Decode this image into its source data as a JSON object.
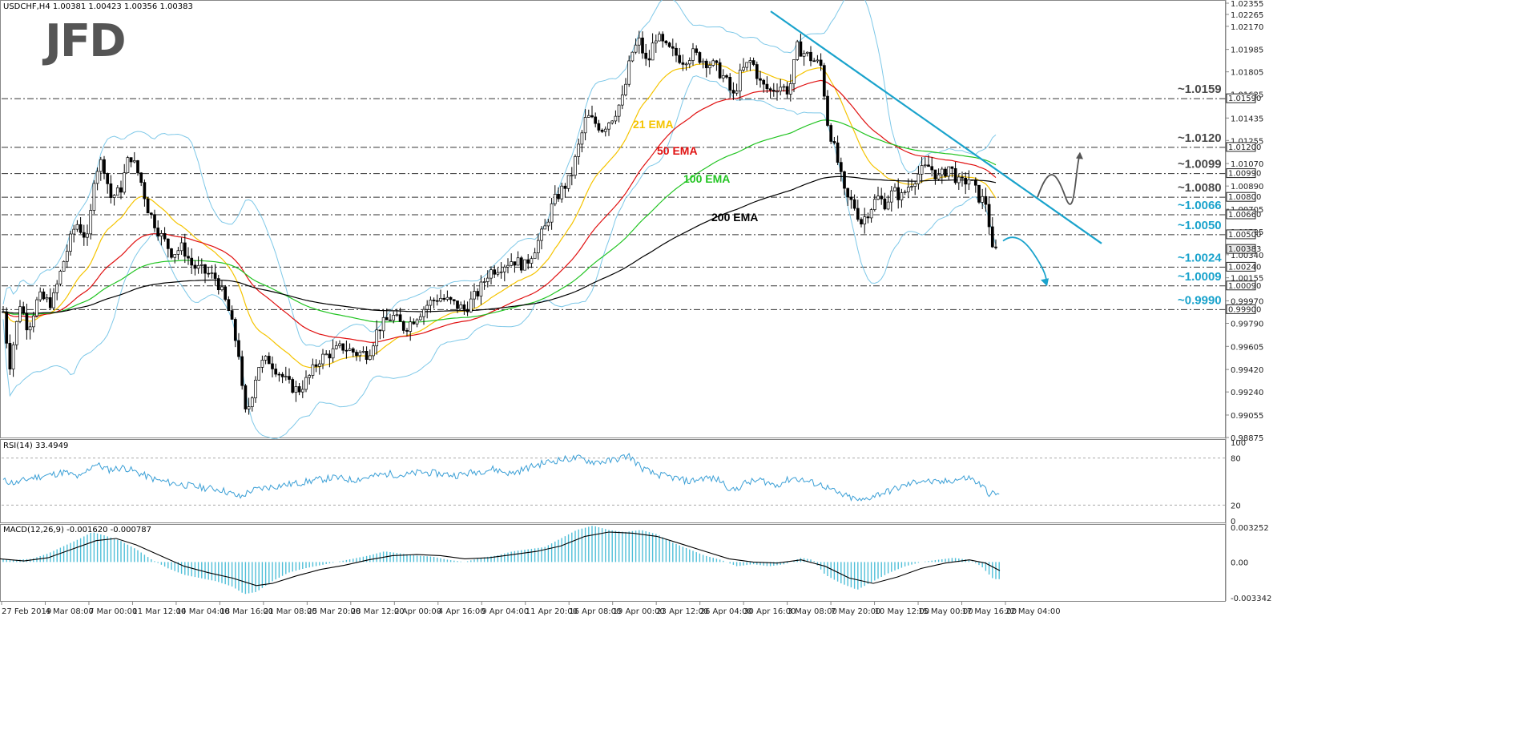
{
  "chart_data": {
    "type": "candlestick",
    "symbol_header": "USDCHF,H4  1.00381 1.00423 1.00356 1.00383",
    "logo": "JFD",
    "price_axis": {
      "range": [
        0.98875,
        1.02355
      ],
      "ticks": [
        "1.02355",
        "1.02265",
        "1.02170",
        "1.01985",
        "1.01805",
        "1.01625",
        "1.01435",
        "1.01255",
        "1.01070",
        "1.00890",
        "1.00705",
        "1.00525",
        "1.00340",
        "1.00155",
        "0.99970",
        "0.99790",
        "0.99605",
        "0.99420",
        "0.99240",
        "0.99055",
        "0.98875"
      ]
    },
    "levels": [
      {
        "value": 1.0159,
        "tag": "1.01590",
        "label": "~1.0159",
        "color": "#4a4a4a"
      },
      {
        "value": 1.012,
        "tag": "1.01200",
        "label": "~1.0120",
        "color": "#4a4a4a"
      },
      {
        "value": 1.0099,
        "tag": "1.00990",
        "label": "~1.0099",
        "color": "#4a4a4a"
      },
      {
        "value": 1.008,
        "tag": "1.00800",
        "label": "~1.0080",
        "color": "#4a4a4a"
      },
      {
        "value": 1.0066,
        "tag": "1.00660",
        "label": "~1.0066",
        "color": "#1aa3cc"
      },
      {
        "value": 1.005,
        "tag": "1.00500",
        "label": "~1.0050",
        "color": "#1aa3cc"
      },
      {
        "value": 1.0024,
        "tag": "1.00240",
        "label": "~1.0024",
        "color": "#1aa3cc"
      },
      {
        "value": 1.0009,
        "tag": "1.00090",
        "label": "~1.0009",
        "color": "#1aa3cc"
      },
      {
        "value": 0.999,
        "tag": "0.99900",
        "label": "~0.9990",
        "color": "#1aa3cc"
      }
    ],
    "current_price_tag": "1.00383",
    "ema_labels": [
      {
        "text": "21 EMA",
        "color": "#f5c400"
      },
      {
        "text": "50 EMA",
        "color": "#e01010"
      },
      {
        "text": "100 EMA",
        "color": "#22c422"
      },
      {
        "text": "200 EMA",
        "color": "#000000"
      }
    ],
    "x_ticks": [
      "27 Feb 2019",
      "4 Mar 08:00",
      "7 Mar 00:00",
      "11 Mar 12:00",
      "14 Mar 04:00",
      "18 Mar 16:00",
      "21 Mar 08:00",
      "25 Mar 20:00",
      "28 Mar 12:00",
      "2 Apr 00:00",
      "4 Apr 16:00",
      "9 Apr 04:00",
      "11 Apr 20:00",
      "16 Apr 08:00",
      "19 Apr 00:00",
      "23 Apr 12:00",
      "26 Apr 04:00",
      "30 Apr 16:00",
      "3 May 08:00",
      "7 May 20:00",
      "10 May 12:00",
      "15 May 00:00",
      "17 May 16:00",
      "22 May 04:00"
    ],
    "price_path": [
      [
        0,
        1.001
      ],
      [
        12,
        0.9945
      ],
      [
        25,
        0.9995
      ],
      [
        35,
        0.9975
      ],
      [
        48,
        1.0
      ],
      [
        65,
        0.9995
      ],
      [
        80,
        1.003
      ],
      [
        95,
        1.006
      ],
      [
        110,
        1.0045
      ],
      [
        118,
        1.01
      ],
      [
        128,
        1.011
      ],
      [
        138,
        1.008
      ],
      [
        150,
        1.0085
      ],
      [
        162,
        1.0115
      ],
      [
        175,
        1.0095
      ],
      [
        185,
        1.007
      ],
      [
        200,
        1.005
      ],
      [
        215,
        1.0035
      ],
      [
        228,
        1.004
      ],
      [
        240,
        1.0025
      ],
      [
        255,
        1.002
      ],
      [
        270,
        1.0015
      ],
      [
        285,
        0.999
      ],
      [
        298,
        0.9955
      ],
      [
        305,
        0.9905
      ],
      [
        312,
        0.9915
      ],
      [
        322,
        0.9945
      ],
      [
        335,
        0.995
      ],
      [
        348,
        0.994
      ],
      [
        360,
        0.993
      ],
      [
        372,
        0.9925
      ],
      [
        385,
        0.9935
      ],
      [
        398,
        0.995
      ],
      [
        412,
        0.9955
      ],
      [
        428,
        0.996
      ],
      [
        445,
        0.9955
      ],
      [
        460,
        0.9955
      ],
      [
        472,
        0.9975
      ],
      [
        490,
        0.9985
      ],
      [
        505,
        0.9975
      ],
      [
        520,
        0.9985
      ],
      [
        535,
        0.9995
      ],
      [
        548,
        1.0
      ],
      [
        565,
        0.9995
      ],
      [
        580,
        0.999
      ],
      [
        598,
        1.0005
      ],
      [
        610,
        1.002
      ],
      [
        625,
        1.0025
      ],
      [
        640,
        1.003
      ],
      [
        655,
        1.0025
      ],
      [
        668,
        1.004
      ],
      [
        680,
        1.0055
      ],
      [
        690,
        1.0075
      ],
      [
        700,
        1.0085
      ],
      [
        712,
        1.0095
      ],
      [
        722,
        1.012
      ],
      [
        732,
        1.0145
      ],
      [
        742,
        1.014
      ],
      [
        752,
        1.0135
      ],
      [
        765,
        1.0145
      ],
      [
        778,
        1.016
      ],
      [
        788,
        1.0195
      ],
      [
        798,
        1.0205
      ],
      [
        808,
        1.0185
      ],
      [
        818,
        1.021
      ],
      [
        830,
        1.02
      ],
      [
        842,
        1.0195
      ],
      [
        852,
        1.019
      ],
      [
        865,
        1.0195
      ],
      [
        878,
        1.019
      ],
      [
        892,
        1.0185
      ],
      [
        905,
        1.0175
      ],
      [
        915,
        1.016
      ],
      [
        925,
        1.018
      ],
      [
        938,
        1.019
      ],
      [
        950,
        1.017
      ],
      [
        962,
        1.0165
      ],
      [
        972,
        1.017
      ],
      [
        985,
        1.0165
      ],
      [
        995,
        1.02
      ],
      [
        1005,
        1.0195
      ],
      [
        1015,
        1.019
      ],
      [
        1025,
        1.0185
      ],
      [
        1033,
        1.014
      ],
      [
        1045,
        1.011
      ],
      [
        1055,
        1.008
      ],
      [
        1065,
        1.0075
      ],
      [
        1075,
        1.006
      ],
      [
        1085,
        1.007
      ],
      [
        1095,
        1.008
      ],
      [
        1105,
        1.0075
      ],
      [
        1115,
        1.0085
      ],
      [
        1125,
        1.008
      ],
      [
        1135,
        1.009
      ],
      [
        1148,
        1.01
      ],
      [
        1160,
        1.0105
      ],
      [
        1172,
        1.0095
      ],
      [
        1185,
        1.0105
      ],
      [
        1198,
        1.009
      ],
      [
        1210,
        1.0095
      ],
      [
        1222,
        1.008
      ],
      [
        1232,
        1.0075
      ],
      [
        1236,
        1.005
      ],
      [
        1240,
        1.003
      ],
      [
        1244,
        1.004
      ],
      [
        1248,
        1.0038
      ]
    ],
    "rsi": {
      "label": "RSI(14) 33.4949",
      "ticks": [
        "100",
        "80",
        "20",
        "0"
      ],
      "range": [
        0,
        100
      ],
      "guides": [
        80,
        20
      ],
      "values": [
        [
          0,
          52
        ],
        [
          20,
          48
        ],
        [
          40,
          55
        ],
        [
          60,
          58
        ],
        [
          80,
          62
        ],
        [
          100,
          55
        ],
        [
          118,
          73
        ],
        [
          135,
          65
        ],
        [
          155,
          68
        ],
        [
          175,
          60
        ],
        [
          195,
          52
        ],
        [
          215,
          48
        ],
        [
          235,
          45
        ],
        [
          255,
          42
        ],
        [
          275,
          40
        ],
        [
          300,
          30
        ],
        [
          312,
          38
        ],
        [
          330,
          42
        ],
        [
          350,
          45
        ],
        [
          372,
          48
        ],
        [
          395,
          52
        ],
        [
          418,
          55
        ],
        [
          440,
          52
        ],
        [
          462,
          56
        ],
        [
          485,
          60
        ],
        [
          505,
          58
        ],
        [
          525,
          62
        ],
        [
          548,
          60
        ],
        [
          570,
          58
        ],
        [
          592,
          62
        ],
        [
          615,
          66
        ],
        [
          638,
          60
        ],
        [
          660,
          68
        ],
        [
          680,
          74
        ],
        [
          700,
          78
        ],
        [
          722,
          80
        ],
        [
          740,
          75
        ],
        [
          760,
          76
        ],
        [
          785,
          83
        ],
        [
          800,
          68
        ],
        [
          815,
          60
        ],
        [
          840,
          55
        ],
        [
          860,
          50
        ],
        [
          880,
          55
        ],
        [
          898,
          52
        ],
        [
          915,
          38
        ],
        [
          930,
          48
        ],
        [
          950,
          52
        ],
        [
          968,
          45
        ],
        [
          990,
          55
        ],
        [
          1008,
          50
        ],
        [
          1028,
          45
        ],
        [
          1045,
          35
        ],
        [
          1060,
          30
        ],
        [
          1075,
          25
        ],
        [
          1090,
          32
        ],
        [
          1110,
          38
        ],
        [
          1130,
          45
        ],
        [
          1150,
          52
        ],
        [
          1170,
          48
        ],
        [
          1190,
          52
        ],
        [
          1210,
          55
        ],
        [
          1225,
          45
        ],
        [
          1235,
          35
        ],
        [
          1248,
          33
        ]
      ]
    },
    "macd": {
      "label": "MACD(12,26,9) -0.001620 -0.000787",
      "ticks": [
        "0.003252",
        "0.00",
        "-0.003342"
      ],
      "range": [
        -0.003342,
        0.003252
      ],
      "histogram": [
        [
          0,
          0.0003
        ],
        [
          20,
          0.0002
        ],
        [
          40,
          0.0003
        ],
        [
          60,
          0.0008
        ],
        [
          80,
          0.0015
        ],
        [
          100,
          0.0022
        ],
        [
          115,
          0.0028
        ],
        [
          130,
          0.0025
        ],
        [
          150,
          0.002
        ],
        [
          170,
          0.0012
        ],
        [
          190,
          0.0002
        ],
        [
          210,
          -0.0006
        ],
        [
          230,
          -0.0012
        ],
        [
          250,
          -0.0015
        ],
        [
          270,
          -0.0018
        ],
        [
          290,
          -0.0023
        ],
        [
          305,
          -0.003
        ],
        [
          320,
          -0.0028
        ],
        [
          340,
          -0.0018
        ],
        [
          360,
          -0.001
        ],
        [
          380,
          -0.0006
        ],
        [
          400,
          -0.0003
        ],
        [
          420,
          0.0
        ],
        [
          440,
          0.0003
        ],
        [
          460,
          0.0006
        ],
        [
          480,
          0.001
        ],
        [
          500,
          0.0008
        ],
        [
          520,
          0.0006
        ],
        [
          540,
          0.0005
        ],
        [
          560,
          0.0002
        ],
        [
          580,
          0.0
        ],
        [
          600,
          0.0004
        ],
        [
          620,
          0.0006
        ],
        [
          640,
          0.001
        ],
        [
          660,
          0.0012
        ],
        [
          680,
          0.0014
        ],
        [
          700,
          0.0022
        ],
        [
          720,
          0.003
        ],
        [
          740,
          0.0034
        ],
        [
          760,
          0.003
        ],
        [
          780,
          0.0028
        ],
        [
          800,
          0.003
        ],
        [
          820,
          0.0026
        ],
        [
          840,
          0.0018
        ],
        [
          860,
          0.0012
        ],
        [
          880,
          0.0006
        ],
        [
          900,
          0.0002
        ],
        [
          920,
          -0.0004
        ],
        [
          940,
          -0.0002
        ],
        [
          960,
          -0.0004
        ],
        [
          980,
          -0.0002
        ],
        [
          1000,
          0.0004
        ],
        [
          1015,
          0.0002
        ],
        [
          1030,
          -0.0012
        ],
        [
          1050,
          -0.002
        ],
        [
          1070,
          -0.0026
        ],
        [
          1090,
          -0.0018
        ],
        [
          1110,
          -0.001
        ],
        [
          1130,
          -0.0004
        ],
        [
          1150,
          0.0
        ],
        [
          1170,
          0.0002
        ],
        [
          1190,
          0.0004
        ],
        [
          1210,
          0.0002
        ],
        [
          1225,
          -0.0004
        ],
        [
          1240,
          -0.0016
        ],
        [
          1248,
          -0.0016
        ]
      ],
      "signal": [
        [
          0,
          0.0003
        ],
        [
          30,
          0.0001
        ],
        [
          60,
          0.0004
        ],
        [
          90,
          0.0012
        ],
        [
          120,
          0.002
        ],
        [
          145,
          0.0022
        ],
        [
          170,
          0.0016
        ],
        [
          200,
          0.0006
        ],
        [
          230,
          -0.0004
        ],
        [
          260,
          -0.001
        ],
        [
          290,
          -0.0015
        ],
        [
          320,
          -0.0022
        ],
        [
          340,
          -0.002
        ],
        [
          370,
          -0.0013
        ],
        [
          400,
          -0.0007
        ],
        [
          430,
          -0.0003
        ],
        [
          460,
          0.0002
        ],
        [
          490,
          0.0006
        ],
        [
          520,
          0.0007
        ],
        [
          550,
          0.0006
        ],
        [
          580,
          0.0003
        ],
        [
          610,
          0.0004
        ],
        [
          640,
          0.0007
        ],
        [
          670,
          0.001
        ],
        [
          700,
          0.0015
        ],
        [
          730,
          0.0024
        ],
        [
          760,
          0.0028
        ],
        [
          790,
          0.0027
        ],
        [
          820,
          0.0024
        ],
        [
          850,
          0.0017
        ],
        [
          880,
          0.001
        ],
        [
          910,
          0.0003
        ],
        [
          940,
          0.0
        ],
        [
          970,
          -0.0001
        ],
        [
          1000,
          0.0002
        ],
        [
          1030,
          -0.0004
        ],
        [
          1060,
          -0.0015
        ],
        [
          1090,
          -0.002
        ],
        [
          1120,
          -0.0014
        ],
        [
          1150,
          -0.0006
        ],
        [
          1180,
          -0.0001
        ],
        [
          1210,
          0.0002
        ],
        [
          1230,
          -0.0001
        ],
        [
          1248,
          -0.0008
        ]
      ]
    },
    "annotations": {
      "trendline": [
        [
          962,
          1.0229
        ],
        [
          1375,
          1.0043
        ]
      ],
      "bullish_scenario": [
        [
          1295,
          1.008
        ],
        [
          1310,
          1.0095
        ],
        [
          1330,
          1.008
        ],
        [
          1348,
          1.0115
        ]
      ],
      "bearish_scenario": [
        [
          1252,
          1.0045
        ],
        [
          1270,
          1.0048
        ],
        [
          1290,
          1.0035
        ],
        [
          1305,
          1.001
        ]
      ]
    }
  }
}
